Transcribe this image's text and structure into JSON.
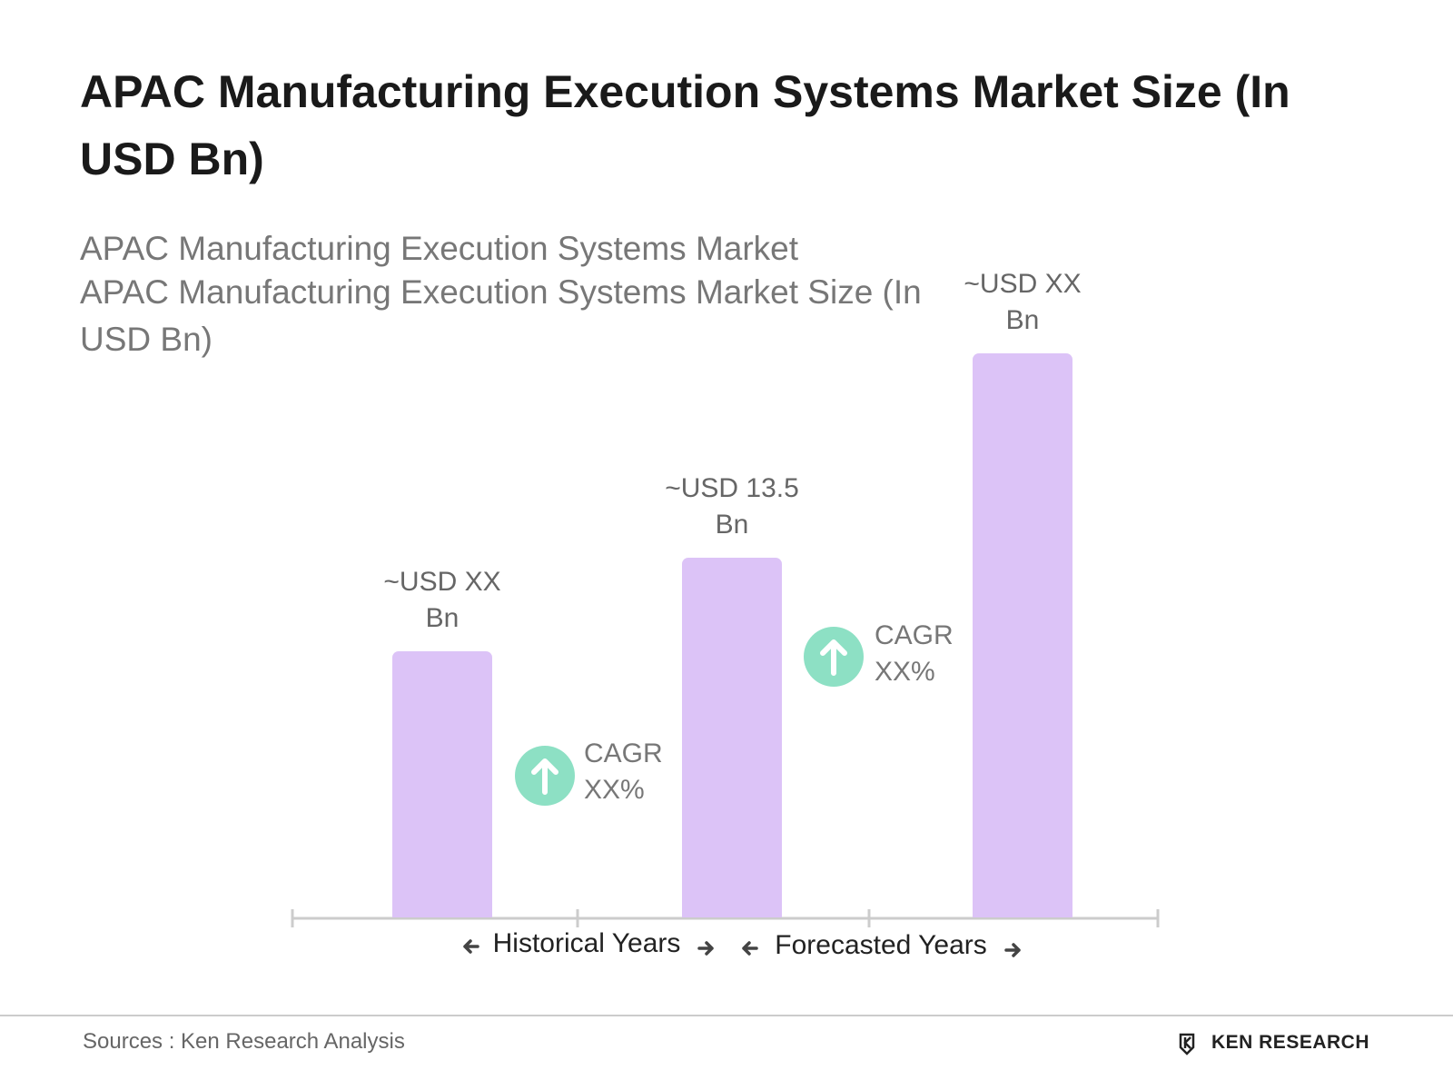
{
  "chart_data": {
    "type": "bar",
    "title": "APAC Manufacturing Execution Systems Market Size (In USD Bn)",
    "subtitle": [
      "APAC Manufacturing Execution Systems Market",
      "APAC Manufacturing Execution Systems Market Size (In USD Bn)"
    ],
    "categories": [
      null,
      null,
      null
    ],
    "values": [
      10.0,
      13.5,
      21.2
    ],
    "value_labels": [
      "~USD XX Bn",
      "~USD 13.5 Bn",
      "~USD XX Bn"
    ],
    "color": "#dcc3f7",
    "annotations": {
      "cagr": [
        "CAGR XX%",
        "CAGR XX%"
      ],
      "periods": [
        "Historical Years",
        "Forecasted Years"
      ]
    },
    "source": "Sources : Ken Research Analysis",
    "logo": "KEN RESEARCH"
  }
}
